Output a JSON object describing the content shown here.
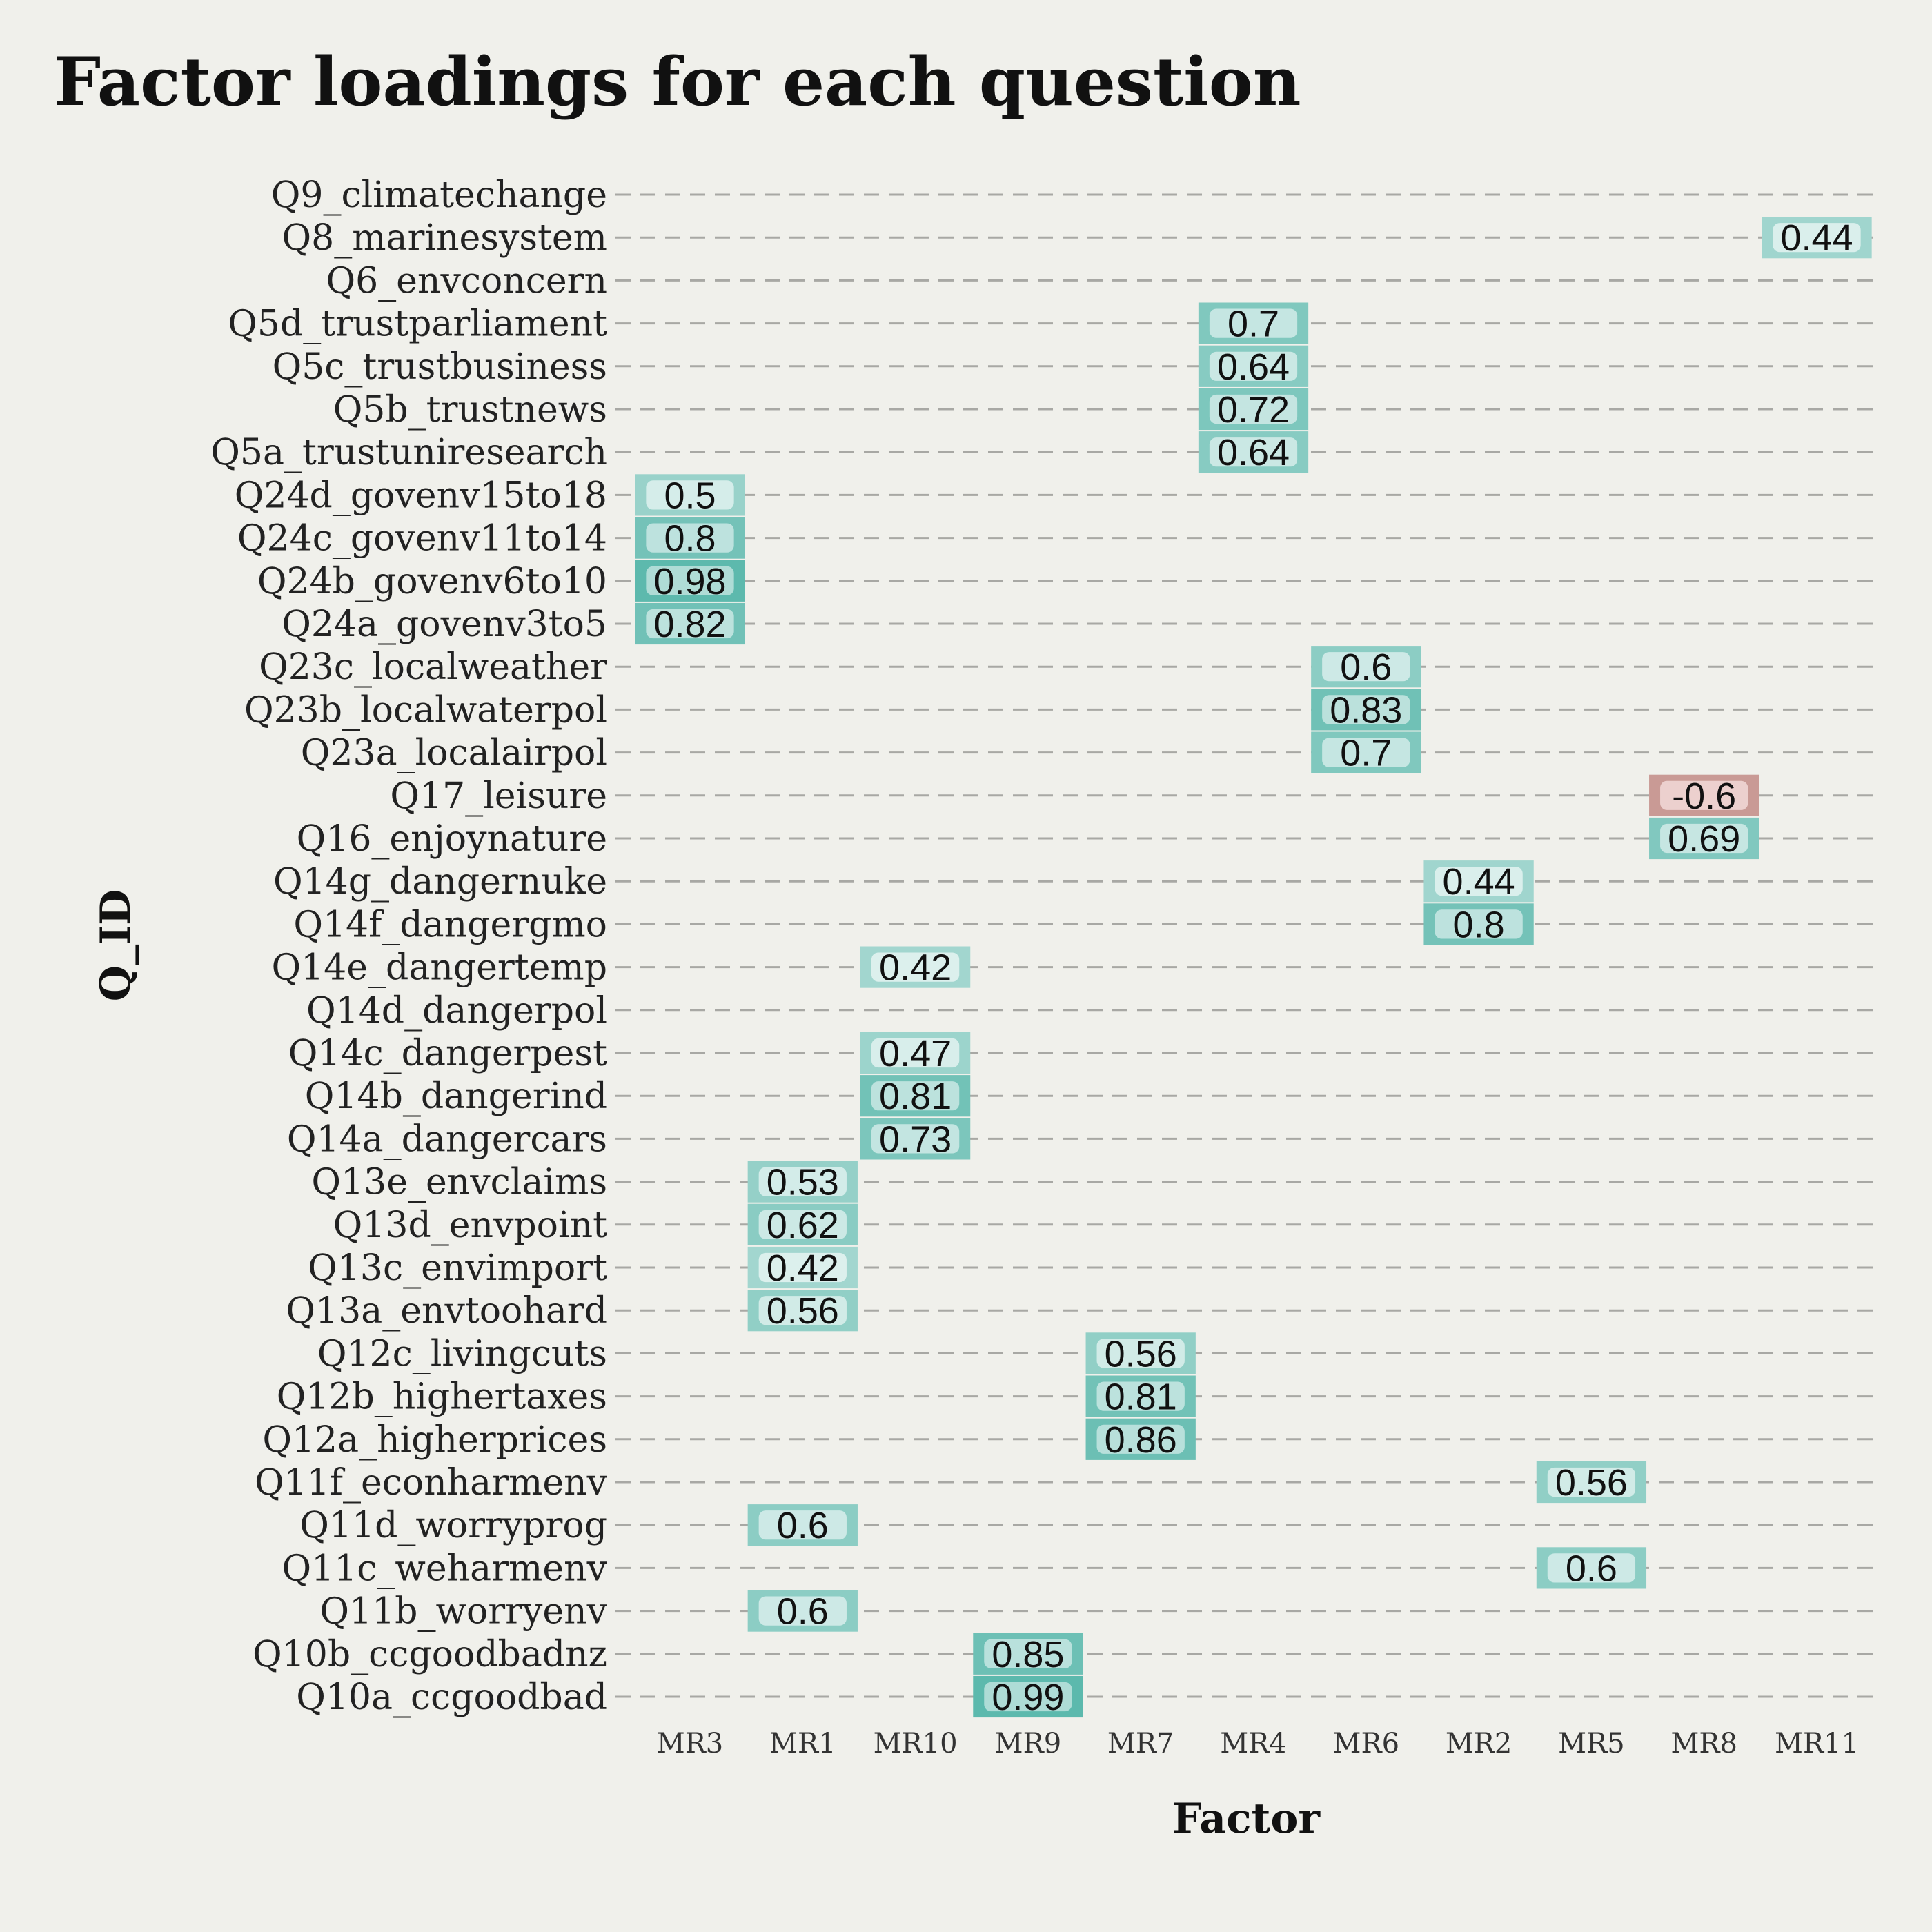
{
  "chart_data": {
    "type": "heatmap",
    "title": "Factor loadings for each question",
    "xlabel": "Factor",
    "ylabel": "Q_ID",
    "x_categories": [
      "MR3",
      "MR1",
      "MR10",
      "MR9",
      "MR7",
      "MR4",
      "MR6",
      "MR2",
      "MR5",
      "MR8",
      "MR11"
    ],
    "y_categories": [
      "Q9_climatechange",
      "Q8_marinesystem",
      "Q6_envconcern",
      "Q5d_trustparliament",
      "Q5c_trustbusiness",
      "Q5b_trustnews",
      "Q5a_trustuniresearch",
      "Q24d_govenv15to18",
      "Q24c_govenv11to14",
      "Q24b_govenv6to10",
      "Q24a_govenv3to5",
      "Q23c_localweather",
      "Q23b_localwaterpol",
      "Q23a_localairpol",
      "Q17_leisure",
      "Q16_enjoynature",
      "Q14g_dangernuke",
      "Q14f_dangergmo",
      "Q14e_dangertemp",
      "Q14d_dangerpol",
      "Q14c_dangerpest",
      "Q14b_dangerind",
      "Q14a_dangercars",
      "Q13e_envclaims",
      "Q13d_envpoint",
      "Q13c_envimport",
      "Q13a_envtoohard",
      "Q12c_livingcuts",
      "Q12b_highertaxes",
      "Q12a_higherprices",
      "Q11f_econharmenv",
      "Q11d_worryprog",
      "Q11c_weharmenv",
      "Q11b_worryenv",
      "Q10b_ccgoodbadnz",
      "Q10a_ccgoodbad"
    ],
    "cells": [
      {
        "q": "Q8_marinesystem",
        "factor": "MR11",
        "value": 0.44,
        "label": "0.44"
      },
      {
        "q": "Q5d_trustparliament",
        "factor": "MR4",
        "value": 0.7,
        "label": "0.7"
      },
      {
        "q": "Q5c_trustbusiness",
        "factor": "MR4",
        "value": 0.64,
        "label": "0.64"
      },
      {
        "q": "Q5b_trustnews",
        "factor": "MR4",
        "value": 0.72,
        "label": "0.72"
      },
      {
        "q": "Q5a_trustuniresearch",
        "factor": "MR4",
        "value": 0.64,
        "label": "0.64"
      },
      {
        "q": "Q24d_govenv15to18",
        "factor": "MR3",
        "value": 0.5,
        "label": "0.5"
      },
      {
        "q": "Q24c_govenv11to14",
        "factor": "MR3",
        "value": 0.8,
        "label": "0.8"
      },
      {
        "q": "Q24b_govenv6to10",
        "factor": "MR3",
        "value": 0.98,
        "label": "0.98"
      },
      {
        "q": "Q24a_govenv3to5",
        "factor": "MR3",
        "value": 0.82,
        "label": "0.82"
      },
      {
        "q": "Q23c_localweather",
        "factor": "MR6",
        "value": 0.6,
        "label": "0.6"
      },
      {
        "q": "Q23b_localwaterpol",
        "factor": "MR6",
        "value": 0.83,
        "label": "0.83"
      },
      {
        "q": "Q23a_localairpol",
        "factor": "MR6",
        "value": 0.7,
        "label": "0.7"
      },
      {
        "q": "Q17_leisure",
        "factor": "MR8",
        "value": -0.6,
        "label": "-0.6"
      },
      {
        "q": "Q16_enjoynature",
        "factor": "MR8",
        "value": 0.69,
        "label": "0.69"
      },
      {
        "q": "Q14g_dangernuke",
        "factor": "MR2",
        "value": 0.44,
        "label": "0.44"
      },
      {
        "q": "Q14f_dangergmo",
        "factor": "MR2",
        "value": 0.8,
        "label": "0.8"
      },
      {
        "q": "Q14e_dangertemp",
        "factor": "MR10",
        "value": 0.42,
        "label": "0.42"
      },
      {
        "q": "Q14c_dangerpest",
        "factor": "MR10",
        "value": 0.47,
        "label": "0.47"
      },
      {
        "q": "Q14b_dangerind",
        "factor": "MR10",
        "value": 0.81,
        "label": "0.81"
      },
      {
        "q": "Q14a_dangercars",
        "factor": "MR10",
        "value": 0.73,
        "label": "0.73"
      },
      {
        "q": "Q13e_envclaims",
        "factor": "MR1",
        "value": 0.53,
        "label": "0.53"
      },
      {
        "q": "Q13d_envpoint",
        "factor": "MR1",
        "value": 0.62,
        "label": "0.62"
      },
      {
        "q": "Q13c_envimport",
        "factor": "MR1",
        "value": 0.42,
        "label": "0.42"
      },
      {
        "q": "Q13a_envtoohard",
        "factor": "MR1",
        "value": 0.56,
        "label": "0.56"
      },
      {
        "q": "Q12c_livingcuts",
        "factor": "MR7",
        "value": 0.56,
        "label": "0.56"
      },
      {
        "q": "Q12b_highertaxes",
        "factor": "MR7",
        "value": 0.81,
        "label": "0.81"
      },
      {
        "q": "Q12a_higherprices",
        "factor": "MR7",
        "value": 0.86,
        "label": "0.86"
      },
      {
        "q": "Q11f_econharmenv",
        "factor": "MR5",
        "value": 0.56,
        "label": "0.56"
      },
      {
        "q": "Q11d_worryprog",
        "factor": "MR1",
        "value": 0.6,
        "label": "0.6"
      },
      {
        "q": "Q11c_weharmenv",
        "factor": "MR5",
        "value": 0.6,
        "label": "0.6"
      },
      {
        "q": "Q11b_worryenv",
        "factor": "MR1",
        "value": 0.6,
        "label": "0.6"
      },
      {
        "q": "Q10b_ccgoodbadnz",
        "factor": "MR9",
        "value": 0.85,
        "label": "0.85"
      },
      {
        "q": "Q10a_ccgoodbad",
        "factor": "MR9",
        "value": 0.99,
        "label": "0.99"
      }
    ],
    "grid": true,
    "legend": "none",
    "colors": {
      "positive": "#5bb8ac",
      "negative": "#c0635d",
      "background": "#f0f0eb",
      "gridline": "#a8a8a4"
    }
  }
}
